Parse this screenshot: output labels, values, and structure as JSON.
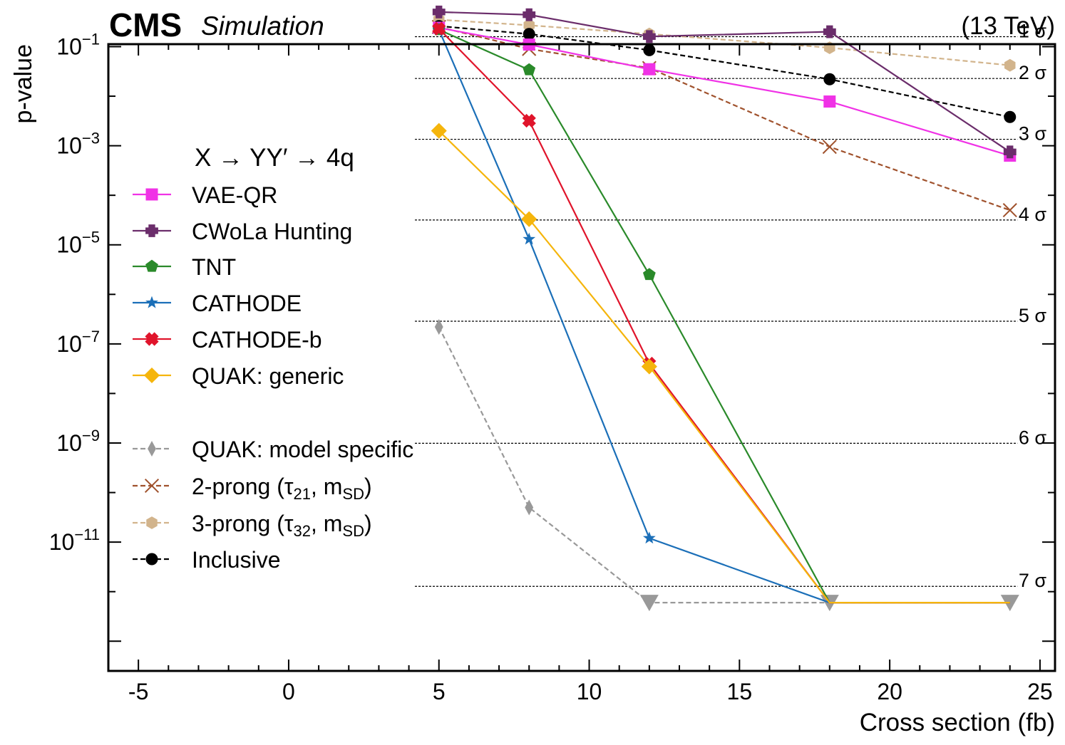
{
  "header": {
    "experiment": "CMS",
    "status": "Simulation",
    "energy": "(13 TeV)"
  },
  "chart_data": {
    "type": "line",
    "title": "",
    "xlabel": "Cross section (fb)",
    "ylabel": "p-value",
    "xlim": [
      -6,
      25.5
    ],
    "ylim_log10": [
      -13.6,
      -0.95
    ],
    "y_scale": "log",
    "x_ticks": [
      -5,
      0,
      5,
      10,
      15,
      20,
      25
    ],
    "x_tick_labels": [
      "-5",
      "0",
      "5",
      "10",
      "15",
      "20",
      "25"
    ],
    "y_ticks_log10": [
      -1,
      -3,
      -5,
      -7,
      -9,
      -11
    ],
    "y_tick_labels": [
      {
        "base": "10",
        "exp": "−1"
      },
      {
        "base": "10",
        "exp": "−3"
      },
      {
        "base": "10",
        "exp": "−5"
      },
      {
        "base": "10",
        "exp": "−7"
      },
      {
        "base": "10",
        "exp": "−9"
      },
      {
        "base": "10",
        "exp": "−11"
      }
    ],
    "legend_title": "X → YY′ → 4q",
    "legend_position": "left",
    "sigma_lines": [
      {
        "label": "1 σ",
        "p": 0.1587
      },
      {
        "label": "2 σ",
        "p": 0.02275
      },
      {
        "label": "3 σ",
        "p": 0.00135
      },
      {
        "label": "4 σ",
        "p": 3.17e-05
      },
      {
        "label": "5 σ",
        "p": 2.87e-07
      },
      {
        "label": "6 σ",
        "p": 9.87e-10
      },
      {
        "label": "7 σ",
        "p": 1.28e-12
      }
    ],
    "series": [
      {
        "name": "VAE-QR",
        "color": "#f032e6",
        "marker": "square",
        "dashed": false,
        "x": [
          5,
          8,
          12,
          18,
          24
        ],
        "y": [
          0.24,
          0.11,
          0.035,
          0.0078,
          0.00063
        ]
      },
      {
        "name": "CWoLa Hunting",
        "color": "#6b2d6b",
        "marker": "plus",
        "dashed": false,
        "x": [
          5,
          8,
          12,
          18,
          24
        ],
        "y": [
          0.5,
          0.44,
          0.16,
          0.2,
          0.00075
        ]
      },
      {
        "name": "TNT",
        "color": "#2a8a2a",
        "marker": "pentagon",
        "dashed": false,
        "x": [
          5,
          8,
          12,
          18,
          24
        ],
        "y": [
          0.22,
          0.034,
          2.5e-06,
          6e-13,
          6e-13
        ]
      },
      {
        "name": "CATHODE",
        "color": "#1b6fb8",
        "marker": "star",
        "dashed": false,
        "x": [
          5,
          8,
          12,
          18,
          24
        ],
        "y": [
          0.22,
          1.3e-05,
          1.2e-11,
          6e-13,
          6e-13
        ]
      },
      {
        "name": "CATHODE-b",
        "color": "#e0142b",
        "marker": "xfill",
        "dashed": false,
        "x": [
          5,
          8,
          12,
          18,
          24
        ],
        "y": [
          0.23,
          0.0032,
          4e-08,
          6e-13,
          6e-13
        ]
      },
      {
        "name": "QUAK: generic",
        "color": "#f5b50c",
        "marker": "diamond",
        "dashed": false,
        "x": [
          5,
          8,
          12,
          18,
          24
        ],
        "y": [
          0.002,
          3.3e-05,
          3.5e-08,
          6e-13,
          6e-13
        ]
      },
      {
        "name": "QUAK: model specific",
        "color": "#999999",
        "marker": "thindiamond",
        "dashed": true,
        "x": [
          5,
          8,
          12,
          18,
          24
        ],
        "y": [
          2.2e-07,
          5e-11,
          6e-13,
          6e-13,
          6e-13
        ],
        "limit_points": [
          12,
          18,
          24
        ]
      },
      {
        "name": "2-prong (τ₂₁, m_SD)",
        "color": "#a0522d",
        "marker": "x",
        "dashed": true,
        "x": [
          5,
          8,
          12,
          18,
          24
        ],
        "y": [
          0.25,
          0.09,
          0.037,
          0.00095,
          5e-05
        ]
      },
      {
        "name": "3-prong (τ₃₂, m_SD)",
        "color": "#d2b48c",
        "marker": "hexagon",
        "dashed": true,
        "x": [
          5,
          8,
          12,
          18,
          24
        ],
        "y": [
          0.35,
          0.27,
          0.18,
          0.095,
          0.042
        ]
      },
      {
        "name": "Inclusive",
        "color": "#000000",
        "marker": "circle",
        "dashed": true,
        "x": [
          5,
          8,
          12,
          18,
          24
        ],
        "y": [
          0.26,
          0.18,
          0.085,
          0.022,
          0.0038
        ]
      }
    ]
  }
}
